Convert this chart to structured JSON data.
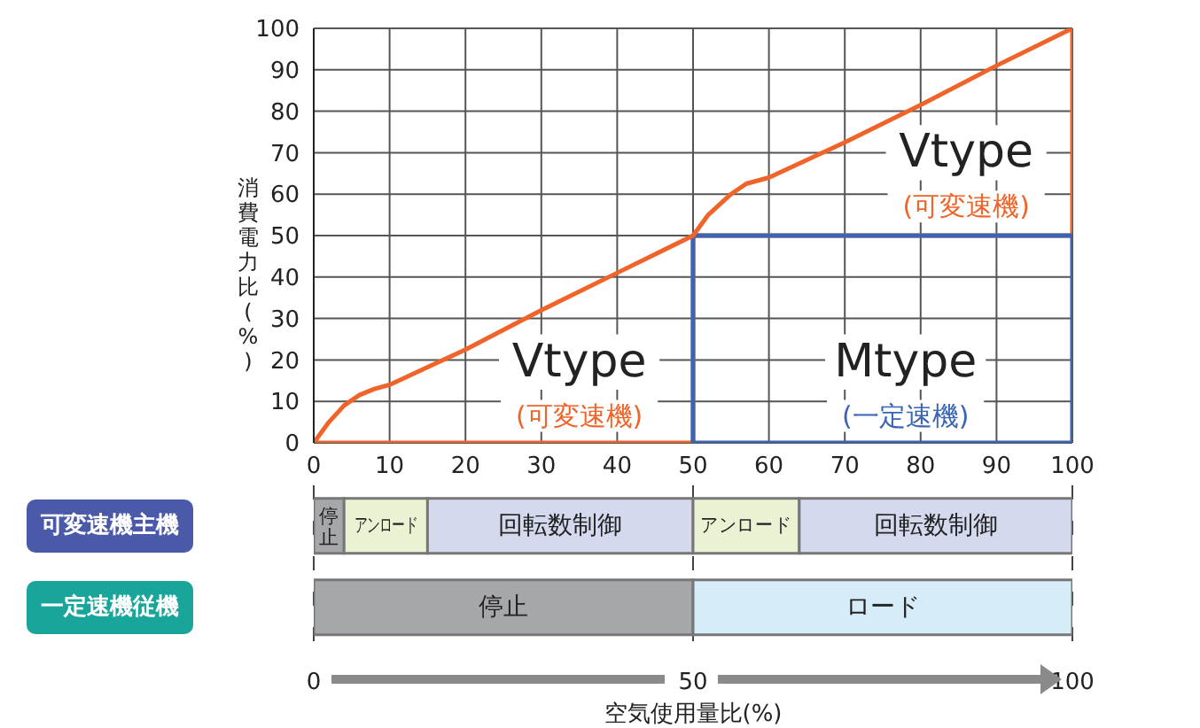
{
  "chart_data": [
    {
      "type": "line",
      "xlabel": null,
      "ylabel": "消費電力比(%)",
      "xlim": [
        0,
        100
      ],
      "xticks": [
        0,
        10,
        20,
        30,
        40,
        50,
        60,
        70,
        80,
        90,
        100
      ],
      "ylim": [
        0,
        100
      ],
      "yticks": [
        0,
        10,
        20,
        30,
        40,
        50,
        60,
        70,
        80,
        90,
        100
      ],
      "grid": true,
      "marker": "none",
      "series": [
        {
          "color": "#f0642a",
          "x": [
            0,
            50,
            50,
            100,
            100
          ],
          "values": [
            0,
            0,
            50,
            50,
            100
          ]
        },
        {
          "color": "#3a64b4",
          "x": [
            50,
            50,
            100,
            100
          ],
          "values": [
            0,
            50,
            50,
            0
          ]
        },
        {
          "color": "#3a64b4",
          "x": [
            50,
            100
          ],
          "values": [
            0,
            0
          ]
        },
        {
          "color": "#f0642a",
          "x": [
            0,
            2,
            4,
            6,
            8,
            10,
            20,
            30,
            40,
            50,
            52,
            55,
            57,
            60,
            70,
            80,
            90,
            100
          ],
          "values": [
            0,
            5,
            9,
            11.5,
            13,
            14,
            22.5,
            32,
            41,
            50,
            55,
            60,
            62.5,
            64,
            72.5,
            81.5,
            91,
            100
          ]
        }
      ],
      "annotations": [
        "Vtype",
        "(可変速機)",
        "Mtype",
        "(一定速機)",
        "Vtype",
        "(可変速機)"
      ]
    },
    {
      "type": "bar",
      "orientation": "horizontal",
      "stacked": true,
      "categories": [
        "可変速機主機",
        "一定速機従機"
      ],
      "xlabel": "空気使用量比(%)",
      "xlim": [
        0,
        100
      ],
      "xticks": [
        0,
        50,
        100
      ],
      "grid": "x",
      "series": [
        {
          "values": [
            4,
            50
          ],
          "colors": [
            "#a6a7aa",
            "#a6a7aa"
          ],
          "value_labels": [
            "停止",
            "停止"
          ]
        },
        {
          "values": [
            11,
            50
          ],
          "colors": [
            "#e9f3d3",
            "#d6ecf8"
          ],
          "value_labels": [
            "アンロード",
            "ロード"
          ]
        },
        {
          "values": [
            35,
            null
          ],
          "color": "#d4d9ee",
          "value_labels": [
            "回転数制御",
            null
          ]
        },
        {
          "values": [
            14,
            null
          ],
          "color": "#e9f3d3",
          "value_labels": [
            "アンロード",
            null
          ]
        },
        {
          "values": [
            36,
            null
          ],
          "color": "#d4d9ee",
          "value_labels": [
            "回転数制御",
            null
          ]
        }
      ]
    }
  ]
}
